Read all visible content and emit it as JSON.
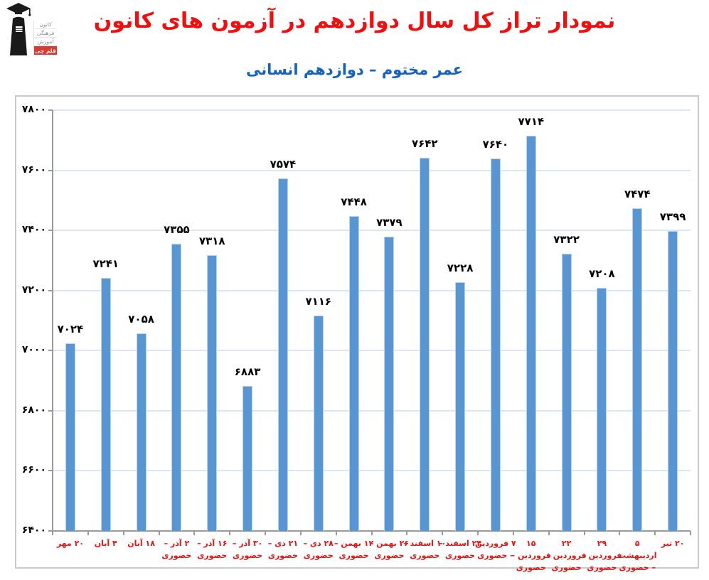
{
  "colors": {
    "title_red": "#f50d0d",
    "subtitle_blue": "#1262c4",
    "bar_blue": "#5795d3",
    "bar_edge": "#b9d3ec",
    "gridline_blue": "#dbe7f5",
    "axis_gray": "#9a9a9a",
    "xlabel_red": "#f50d0d",
    "badge_red": "#d93a31"
  },
  "logo": {
    "name": "kanoon-ghalamchi-logo",
    "lines": [
      "کانون",
      "فرهنگی",
      "آموزش"
    ],
    "badge": "قلم چی"
  },
  "chart_data": {
    "type": "bar",
    "title": "نمودار تراز کل سال دوازدهم در آزمون های کانون",
    "subtitle": "عمر مختوم – دوازدهم انسانی",
    "xlabel": "",
    "ylabel": "",
    "ylim": [
      6400,
      7800
    ],
    "ytick_step": 200,
    "yticks": [
      7800,
      7600,
      7400,
      7200,
      7000,
      6800,
      6600,
      6400
    ],
    "ytick_labels": [
      "۷۸۰۰",
      "۷۶۰۰",
      "۷۴۰۰",
      "۷۲۰۰",
      "۷۰۰۰",
      "۶۸۰۰",
      "۶۶۰۰",
      "۶۴۰۰"
    ],
    "grid": true,
    "legend": false,
    "categories": [
      "۲۰ مهر",
      "۴ آبان",
      "۱۸ آبان",
      "۲ آذر – حضوری",
      "۱۶ آذر – حضوری",
      "۳۰ آذر – حضوری",
      "۲۱ دی – حضوری",
      "۲۸ دی – حضوری",
      "۱۲ بهمن – حضوری",
      "۲۶ بهمن – حضوری",
      "۱۰ اسفند – حضوری",
      "۲۴ اسفند – حضوری",
      "۷ فروردین – حضوری",
      "۱۵ فروردین – حضوری",
      "۲۲ فروردین – حضوری",
      "۲۹ فروردین – حضوری",
      "۵ اردیبهشت – حضوری",
      "۲۰ تیر"
    ],
    "values": [
      7024,
      7241,
      7058,
      7355,
      7318,
      6883,
      7574,
      7116,
      7448,
      7379,
      7642,
      7228,
      7640,
      7714,
      7322,
      7208,
      7474,
      7399
    ],
    "value_labels": [
      "۷۰۲۴",
      "۷۲۴۱",
      "۷۰۵۸",
      "۷۳۵۵",
      "۷۳۱۸",
      "۶۸۸۳",
      "۷۵۷۴",
      "۷۱۱۶",
      "۷۴۴۸",
      "۷۳۷۹",
      "۷۶۴۲",
      "۷۲۲۸",
      "۷۶۴۰",
      "۷۷۱۴",
      "۷۳۲۲",
      "۷۲۰۸",
      "۷۴۷۴",
      "۷۳۹۹"
    ]
  }
}
